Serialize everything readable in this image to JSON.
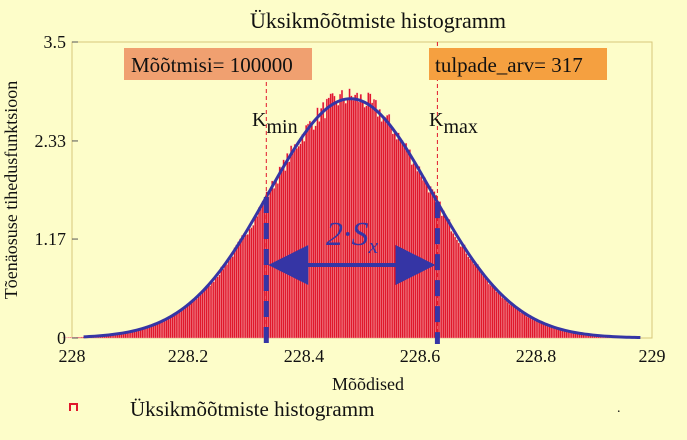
{
  "chart_data": {
    "type": "bar",
    "title": "Üksikmõõtmiste histogramm",
    "xlabel": "Mõõdised",
    "ylabel": "Tõenäosuse tihedusfunktsioon",
    "xlim": [
      228,
      229
    ],
    "ylim": [
      0,
      3.5
    ],
    "x_ticks": [
      "228",
      "228.2",
      "228.4",
      "228.6",
      "228.8",
      "229"
    ],
    "y_ticks": [
      "0",
      "1.17",
      "2.33",
      "3.5"
    ],
    "grid": false,
    "legend_position": "bottom-left",
    "series": [
      {
        "name": "Üksikmõõtmiste histogramm",
        "kind": "histogram",
        "color": "#e0182c",
        "bin_count": 317,
        "shape": "normal",
        "approx_mean": 228.48,
        "approx_std": 0.14,
        "approx_peak": 2.83
      },
      {
        "kind": "normal-density-curve",
        "color": "#3535a5",
        "mean": 228.48,
        "std": 0.141
      }
    ],
    "markers": {
      "kmin": {
        "label": "K",
        "subscript": "min",
        "x": 228.335
      },
      "kmax": {
        "label": "K",
        "subscript": "max",
        "x": 228.63
      },
      "color": "#e0182c",
      "bold_dash_color": "#3535a5",
      "span_label": "2·S",
      "span_subscript": "x"
    },
    "annotations": {
      "count_box": "Mõõtmisi= 100000",
      "bins_box": "tulpade_arv= 317",
      "count_box_color": "#f0a070",
      "bins_box_color": "#f5a040"
    },
    "legend_trailing_dot": "."
  }
}
